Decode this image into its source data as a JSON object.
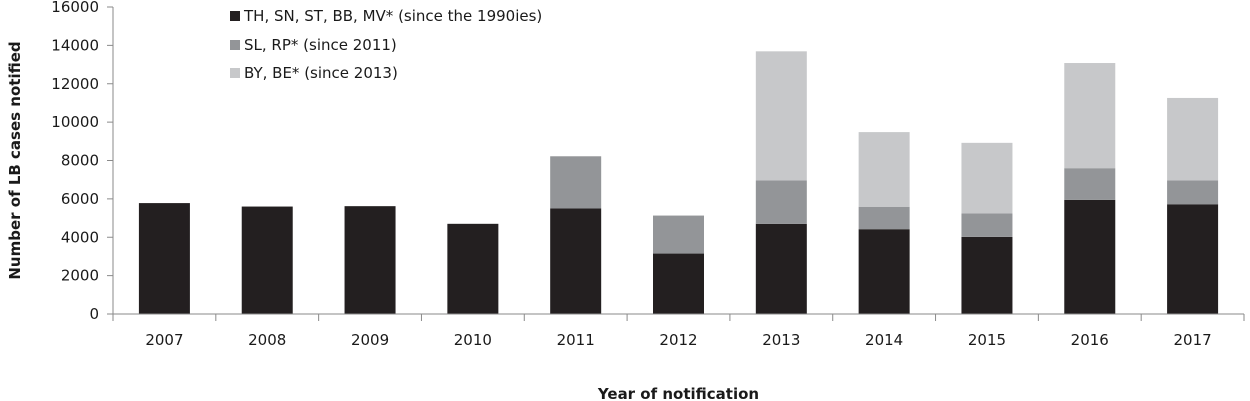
{
  "chart_data": {
    "type": "bar",
    "stacked": true,
    "xlabel": "Year of notification",
    "ylabel": "Number of LB cases notified",
    "ylim": [
      0,
      16000
    ],
    "yticks": [
      0,
      2000,
      4000,
      6000,
      8000,
      10000,
      12000,
      14000,
      16000
    ],
    "grid": false,
    "legend_position": "top-left",
    "categories": [
      "2007",
      "2008",
      "2009",
      "2010",
      "2011",
      "2012",
      "2013",
      "2014",
      "2015",
      "2016",
      "2017"
    ],
    "series": [
      {
        "name": "TH, SN, ST, BB, MV* (since the 1990ies)",
        "color": "#231f20",
        "values": [
          5780,
          5600,
          5620,
          4700,
          5500,
          3150,
          4700,
          4420,
          4020,
          5950,
          5720
        ]
      },
      {
        "name": "SL, RP* (since 2011)",
        "color": "#939598",
        "values": [
          0,
          0,
          0,
          0,
          2720,
          1980,
          2260,
          1170,
          1220,
          1650,
          1240
        ]
      },
      {
        "name": "BY, BE* (since 2013)",
        "color": "#c7c8ca",
        "values": [
          0,
          0,
          0,
          0,
          0,
          0,
          6730,
          3890,
          3680,
          5480,
          4300
        ]
      }
    ]
  }
}
